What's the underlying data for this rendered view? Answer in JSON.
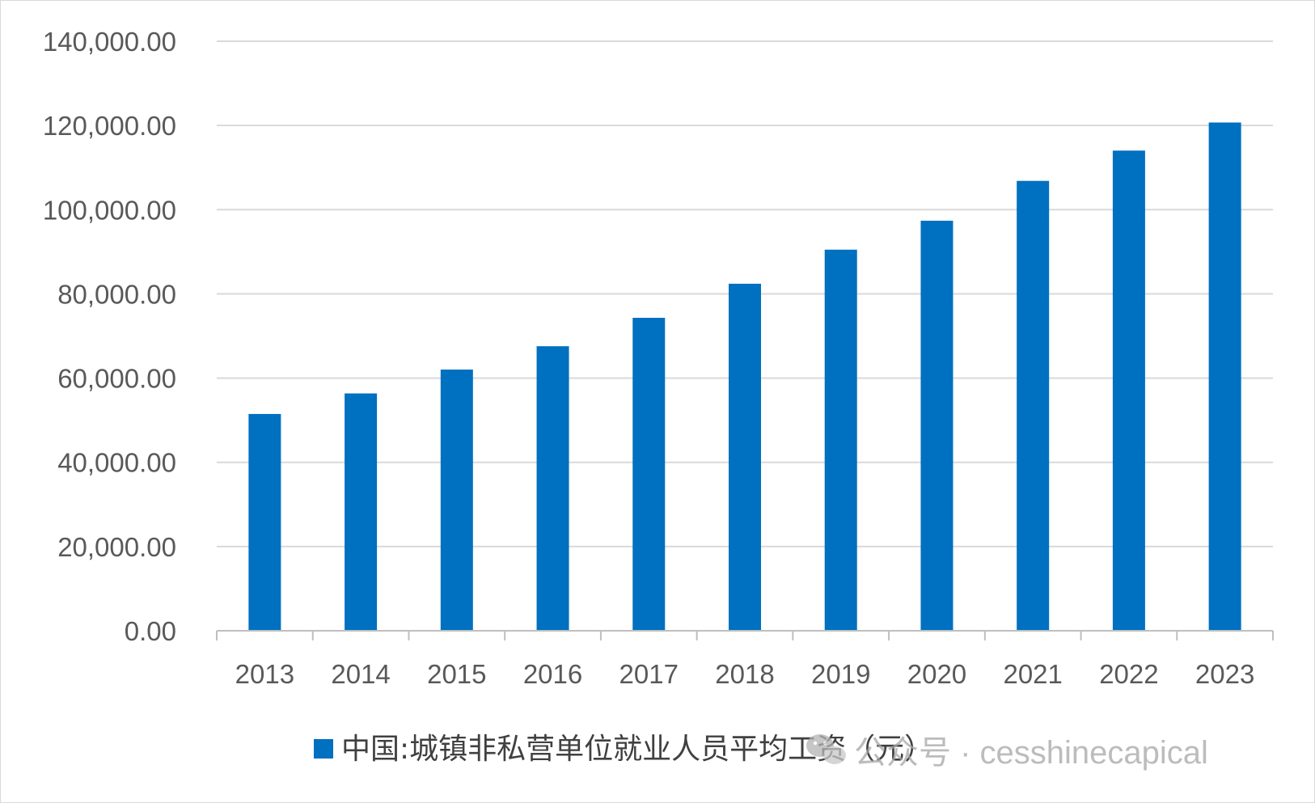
{
  "chart_data": {
    "type": "bar",
    "categories": [
      "2013",
      "2014",
      "2015",
      "2016",
      "2017",
      "2018",
      "2019",
      "2020",
      "2021",
      "2022",
      "2023"
    ],
    "series": [
      {
        "name": "中国:城镇非私营单位就业人员平均工资（元）",
        "values": [
          51483,
          56360,
          62029,
          67569,
          74318,
          82413,
          90501,
          97379,
          106837,
          114029,
          120698
        ],
        "color": "#0070c0"
      }
    ],
    "ylim": [
      0,
      140000
    ],
    "yticks": [
      0,
      20000,
      40000,
      60000,
      80000,
      100000,
      120000,
      140000
    ],
    "ytick_labels": [
      "0.00",
      "20,000.00",
      "40,000.00",
      "60,000.00",
      "80,000.00",
      "100,000.00",
      "120,000.00",
      "140,000.00"
    ],
    "grid": true,
    "legend_position": "bottom",
    "title": "",
    "xlabel": "",
    "ylabel": ""
  },
  "watermark": {
    "text": "公众号 · cesshinecapical",
    "icon": "wechat-icon"
  },
  "colors": {
    "bar": "#0070c0",
    "grid": "#d9d9d9",
    "axis": "#bfbfbf",
    "text": "#595959"
  }
}
